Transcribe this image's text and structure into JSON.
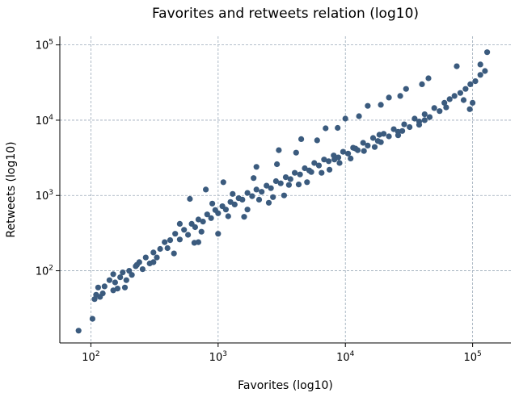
{
  "chart_data": {
    "type": "scatter",
    "title": "Favorites and retweets relation (log10)",
    "xlabel": "Favorites (log10)",
    "ylabel": "Retweets (log10)",
    "x_scale": "log",
    "y_scale": "log",
    "xlim": [
      57,
      200000
    ],
    "ylim": [
      11,
      130000
    ],
    "x_ticks": [
      {
        "base": "10",
        "exp": "2",
        "value": 100
      },
      {
        "base": "10",
        "exp": "3",
        "value": 1000
      },
      {
        "base": "10",
        "exp": "4",
        "value": 10000
      },
      {
        "base": "10",
        "exp": "5",
        "value": 100000
      }
    ],
    "y_ticks": [
      {
        "base": "10",
        "exp": "2",
        "value": 100
      },
      {
        "base": "10",
        "exp": "3",
        "value": 1000
      },
      {
        "base": "10",
        "exp": "4",
        "value": 10000
      },
      {
        "base": "10",
        "exp": "5",
        "value": 100000
      }
    ],
    "grid": true,
    "marker_color": "#3b5b7e",
    "points": [
      [
        80,
        16
      ],
      [
        103,
        23
      ],
      [
        107,
        42
      ],
      [
        110,
        48
      ],
      [
        114,
        60
      ],
      [
        118,
        45
      ],
      [
        124,
        50
      ],
      [
        128,
        62
      ],
      [
        140,
        75
      ],
      [
        150,
        90
      ],
      [
        155,
        70
      ],
      [
        162,
        58
      ],
      [
        170,
        82
      ],
      [
        178,
        95
      ],
      [
        185,
        60
      ],
      [
        190,
        75
      ],
      [
        200,
        100
      ],
      [
        210,
        88
      ],
      [
        225,
        115
      ],
      [
        240,
        130
      ],
      [
        255,
        105
      ],
      [
        270,
        150
      ],
      [
        290,
        125
      ],
      [
        310,
        175
      ],
      [
        330,
        150
      ],
      [
        350,
        195
      ],
      [
        380,
        240
      ],
      [
        400,
        200
      ],
      [
        420,
        255
      ],
      [
        460,
        310
      ],
      [
        500,
        260
      ],
      [
        540,
        350
      ],
      [
        580,
        300
      ],
      [
        620,
        420
      ],
      [
        660,
        380
      ],
      [
        700,
        480
      ],
      [
        760,
        450
      ],
      [
        820,
        560
      ],
      [
        880,
        500
      ],
      [
        950,
        640
      ],
      [
        1000,
        580
      ],
      [
        1080,
        720
      ],
      [
        1150,
        650
      ],
      [
        1250,
        820
      ],
      [
        1350,
        760
      ],
      [
        1450,
        920
      ],
      [
        1550,
        880
      ],
      [
        1700,
        1080
      ],
      [
        1850,
        980
      ],
      [
        2000,
        1200
      ],
      [
        2200,
        1120
      ],
      [
        2400,
        1350
      ],
      [
        2600,
        1250
      ],
      [
        2850,
        1550
      ],
      [
        3100,
        1450
      ],
      [
        3400,
        1750
      ],
      [
        3700,
        1650
      ],
      [
        4000,
        2000
      ],
      [
        4400,
        1900
      ],
      [
        4800,
        2300
      ],
      [
        5200,
        2150
      ],
      [
        5700,
        2700
      ],
      [
        6200,
        2500
      ],
      [
        6800,
        3000
      ],
      [
        7400,
        2850
      ],
      [
        8100,
        3400
      ],
      [
        8800,
        3200
      ],
      [
        9600,
        3800
      ],
      [
        10500,
        3600
      ],
      [
        11500,
        4300
      ],
      [
        12500,
        4000
      ],
      [
        13800,
        5000
      ],
      [
        15000,
        4600
      ],
      [
        16500,
        5800
      ],
      [
        18000,
        5300
      ],
      [
        20000,
        6600
      ],
      [
        22000,
        6100
      ],
      [
        24000,
        7600
      ],
      [
        26000,
        7000
      ],
      [
        29000,
        8800
      ],
      [
        32000,
        8100
      ],
      [
        35000,
        10500
      ],
      [
        38000,
        9600
      ],
      [
        42000,
        12000
      ],
      [
        46000,
        11000
      ],
      [
        50000,
        14500
      ],
      [
        55000,
        13200
      ],
      [
        60000,
        17000
      ],
      [
        66000,
        19000
      ],
      [
        72000,
        21000
      ],
      [
        80000,
        23000
      ],
      [
        88000,
        26000
      ],
      [
        96000,
        30000
      ],
      [
        105000,
        33000
      ],
      [
        115000,
        40000
      ],
      [
        125000,
        45000
      ],
      [
        75000,
        52000
      ],
      [
        130000,
        80000
      ],
      [
        100000,
        17000
      ],
      [
        95000,
        14000
      ],
      [
        230,
        120
      ],
      [
        310,
        130
      ],
      [
        150,
        55
      ],
      [
        450,
        170
      ],
      [
        700,
        240
      ],
      [
        1000,
        310
      ],
      [
        1600,
        520
      ],
      [
        2500,
        800
      ],
      [
        3300,
        1000
      ],
      [
        5000,
        1500
      ],
      [
        7500,
        2200
      ],
      [
        11000,
        3100
      ],
      [
        17000,
        4400
      ],
      [
        26000,
        6300
      ],
      [
        38000,
        8700
      ],
      [
        600,
        900
      ],
      [
        800,
        1200
      ],
      [
        1100,
        1500
      ],
      [
        2000,
        2400
      ],
      [
        3000,
        4000
      ],
      [
        4500,
        5600
      ],
      [
        7000,
        7800
      ],
      [
        10000,
        10500
      ],
      [
        15000,
        15500
      ],
      [
        22000,
        20000
      ],
      [
        30000,
        26000
      ],
      [
        45000,
        36000
      ],
      [
        650,
        235
      ],
      [
        1700,
        650
      ],
      [
        2700,
        950
      ],
      [
        4300,
        1400
      ],
      [
        6500,
        2000
      ],
      [
        9000,
        2700
      ],
      [
        14000,
        3900
      ],
      [
        19000,
        5100
      ],
      [
        28000,
        7200
      ],
      [
        42000,
        10000
      ],
      [
        62000,
        14800
      ],
      [
        85000,
        18500
      ],
      [
        500,
        420
      ],
      [
        900,
        780
      ],
      [
        1300,
        1050
      ],
      [
        1900,
        1700
      ],
      [
        2900,
        2600
      ],
      [
        4100,
        3700
      ],
      [
        6000,
        5400
      ],
      [
        8700,
        7900
      ],
      [
        12800,
        11300
      ],
      [
        19000,
        16000
      ],
      [
        27000,
        21000
      ],
      [
        40000,
        30000
      ],
      [
        115000,
        55000
      ],
      [
        740,
        330
      ],
      [
        1200,
        530
      ],
      [
        2100,
        880
      ],
      [
        3600,
        1380
      ],
      [
        5400,
        2050
      ],
      [
        8200,
        3000
      ],
      [
        12000,
        4200
      ],
      [
        18500,
        6400
      ]
    ]
  }
}
